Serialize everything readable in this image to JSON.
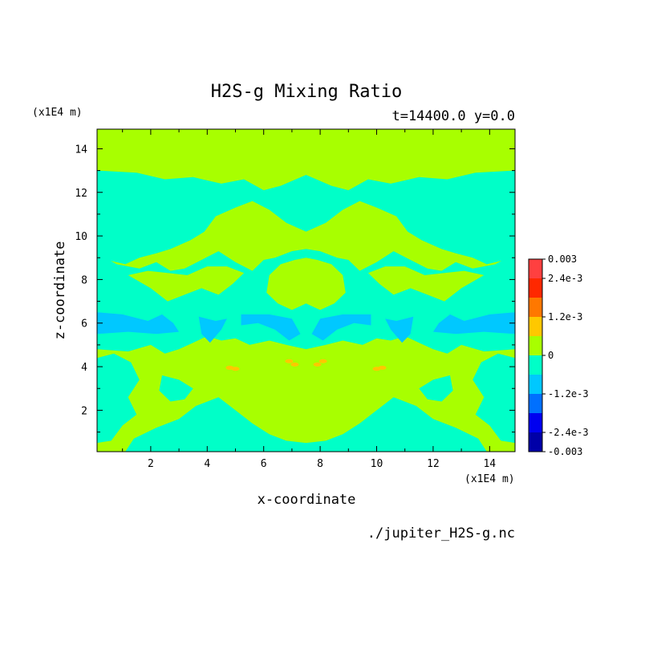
{
  "chart_data": {
    "type": "heatmap",
    "title": "H2S-g Mixing Ratio",
    "subtitle": "t=14400.0 y=0.0",
    "xlabel": "x-coordinate",
    "ylabel": "z-coordinate",
    "x_unit": "(x1E4 m)",
    "z_unit": "(x1E4 m)",
    "xlim": [
      0.1,
      14.9
    ],
    "ylim": [
      0.1,
      14.9
    ],
    "x_ticks": [
      "2",
      "4",
      "6",
      "8",
      "10",
      "12",
      "14"
    ],
    "y_ticks": [
      "2",
      "4",
      "6",
      "8",
      "10",
      "12",
      "14"
    ],
    "x_tick_values": [
      2,
      4,
      6,
      8,
      10,
      12,
      14
    ],
    "y_tick_values": [
      2,
      4,
      6,
      8,
      10,
      12,
      14
    ],
    "colorbar": {
      "levels": [
        -0.003,
        -0.0024,
        -0.0018,
        -0.0012,
        -0.0006,
        0,
        0.0006,
        0.0012,
        0.0018,
        0.0024,
        0.003
      ],
      "colors": [
        "#0000a8",
        "#0000f0",
        "#0070ff",
        "#00c8ff",
        "#00ffc8",
        "#a8ff00",
        "#ffc800",
        "#ff7800",
        "#ff2800",
        "#ff4040"
      ],
      "labels": [
        {
          "value": 0.003,
          "text": "0.003"
        },
        {
          "value": 0.0024,
          "text": "2.4e-3"
        },
        {
          "value": 0.0012,
          "text": "1.2e-3"
        },
        {
          "value": 0,
          "text": "0"
        },
        {
          "value": -0.0012,
          "text": "-1.2e-3"
        },
        {
          "value": -0.0024,
          "text": "-2.4e-3"
        },
        {
          "value": -0.003,
          "text": "-0.003"
        }
      ]
    },
    "background_level": 0,
    "regions_description_levels": {
      "teal_band_upper_z": [
        8.5,
        12.5
      ],
      "blue_band_z": [
        5.5,
        6.5
      ],
      "orange_spots_z": 4.0
    }
  },
  "footer": {
    "source": "./jupiter_H2S-g.nc"
  }
}
